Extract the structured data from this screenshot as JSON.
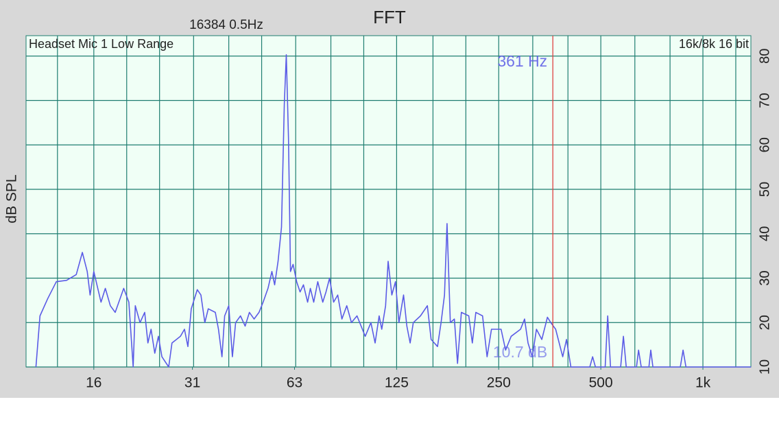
{
  "chart_data": {
    "type": "line",
    "title": "FFT",
    "subtitle": "16384  0.5Hz",
    "annotations": {
      "left": "Headset Mic 1 Low Range",
      "right": "16k/8k 16 bit"
    },
    "ylabel": "dB SPL",
    "cursor": {
      "value": 361,
      "label": "361 Hz",
      "level_label": "10.7 dB",
      "color": "#e04040"
    },
    "xscale": "log",
    "xlim": [
      10.1,
      1385
    ],
    "ylim": [
      10,
      84.6
    ],
    "xticks": [
      16,
      {
        "value": 31.25,
        "label": "31"
      },
      {
        "value": 62.5,
        "label": "63"
      },
      125,
      250,
      500,
      {
        "value": 1000,
        "label": "1k"
      }
    ],
    "xgrid": [
      12.5,
      16,
      20,
      25,
      31.5,
      40,
      50,
      63,
      80,
      100,
      125,
      160,
      200,
      250,
      315,
      400,
      500,
      630,
      800,
      1000,
      1250
    ],
    "yticks": [
      10,
      20,
      30,
      40,
      50,
      60,
      70,
      80
    ],
    "grid": true,
    "grid_color": "#1e7d70",
    "x": [
      10.8,
      11.1,
      11.7,
      12.4,
      13.3,
      14.2,
      14.8,
      15.3,
      15.6,
      16.0,
      16.8,
      17.3,
      17.9,
      18.5,
      19.6,
      20.3,
      20.9,
      21.2,
      21.9,
      22.6,
      23.1,
      23.6,
      24.2,
      24.8,
      25.4,
      26.6,
      27.2,
      28.8,
      29.6,
      30.3,
      31.0,
      32.3,
      33.1,
      34.0,
      34.8,
      36.5,
      37.3,
      38.2,
      38.9,
      40.0,
      41.0,
      41.9,
      43.3,
      44.7,
      46.0,
      47.5,
      49.1,
      50.5,
      52.2,
      53.6,
      54.6,
      55.9,
      57.2,
      58.3,
      59.1,
      60.0,
      60.8,
      61.9,
      63.4,
      64.9,
      66.4,
      68.3,
      69.6,
      71.2,
      73.2,
      75.7,
      77.4,
      79.3,
      81.5,
      83.8,
      86.2,
      89.1,
      92.0,
      95.5,
      101,
      105,
      108,
      111,
      113,
      116,
      118,
      121,
      124,
      127,
      131,
      134,
      137,
      140,
      147,
      154,
      158,
      165,
      169,
      173,
      176,
      180,
      185,
      189,
      194,
      204,
      209,
      214,
      224,
      231,
      238,
      254,
      262,
      272,
      290,
      298,
      305,
      314,
      323,
      335,
      348,
      356,
      368,
      386,
      396,
      408,
      464,
      473,
      482,
      515,
      524,
      534,
      572,
      583,
      594,
      637,
      646,
      658,
      693,
      702,
      712,
      858,
      874,
      891,
      1386
    ],
    "series": [
      {
        "name": "Headset Mic 1",
        "color": "#5a5ae6",
        "values": [
          10,
          21.5,
          25.4,
          29.2,
          29.5,
          30.8,
          35.8,
          31.5,
          26.2,
          31.5,
          24.6,
          27.7,
          23.8,
          22.3,
          27.7,
          24.6,
          10,
          23.8,
          20,
          22.3,
          15.4,
          18.5,
          13.1,
          16.9,
          12.3,
          10,
          15.4,
          16.9,
          18.5,
          14.6,
          23.1,
          27.4,
          26.2,
          20,
          23.1,
          22.3,
          18.5,
          12.3,
          21.5,
          23.8,
          12.3,
          20,
          21.5,
          19.2,
          22.3,
          20.8,
          22.3,
          24.6,
          27.7,
          31.5,
          28.5,
          33.8,
          41.5,
          69.2,
          80.3,
          61.5,
          31.5,
          33.1,
          29.2,
          26.9,
          28.5,
          24.6,
          27.7,
          24.6,
          29.2,
          24.6,
          26.9,
          30.0,
          24.6,
          26.2,
          20.8,
          23.8,
          20,
          21.5,
          16.9,
          20,
          15.4,
          21.5,
          18.5,
          23.8,
          33.8,
          26.2,
          29.2,
          20,
          26.2,
          19.2,
          15.4,
          20,
          21.5,
          23.8,
          16.2,
          14.6,
          20,
          26.2,
          42.3,
          20,
          20.8,
          10.8,
          22.3,
          21.5,
          15.4,
          22.3,
          21.5,
          12.3,
          18.5,
          18.5,
          13.8,
          16.9,
          18.5,
          20.8,
          15.4,
          12.3,
          18.5,
          16.2,
          21.2,
          20,
          18.5,
          12.3,
          16.2,
          10,
          10,
          12.3,
          10,
          10,
          21.5,
          10,
          10,
          16.9,
          10,
          10,
          13.8,
          10,
          10,
          13.8,
          10,
          10,
          13.8,
          10,
          10
        ]
      }
    ]
  }
}
